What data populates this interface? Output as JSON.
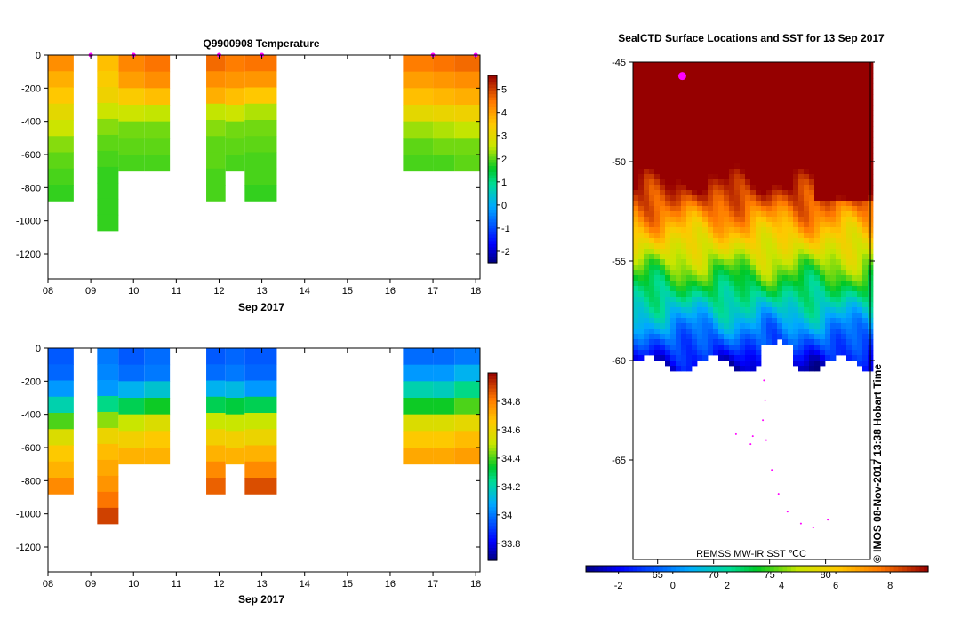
{
  "chart_data": [
    {
      "type": "heatmap",
      "name": "temperature-section",
      "title": "Q9900908  Temperature",
      "xlabel": "Sep 2017",
      "ylabel": "",
      "x_ticks": [
        "08",
        "09",
        "10",
        "11",
        "12",
        "13",
        "14",
        "15",
        "16",
        "17",
        "18"
      ],
      "xlim": [
        8,
        18.1
      ],
      "y_ticks": [
        0,
        -200,
        -400,
        -600,
        -800,
        -1000,
        -1200
      ],
      "ylim": [
        -1350,
        0
      ],
      "colorbar": {
        "ticks": [
          5,
          4,
          3,
          2,
          1,
          0,
          -1,
          -2
        ],
        "range": [
          -2.5,
          5.6
        ]
      },
      "profile_markers": [
        9.0,
        10.0,
        12.0,
        13.0,
        17.0,
        18.0
      ],
      "columns": [
        {
          "x0": 8.0,
          "x1": 8.6,
          "max_depth": -880,
          "values": [
            4.2,
            3.8,
            3.5,
            3.0,
            2.6,
            2.2,
            2.0,
            1.9,
            1.8
          ]
        },
        {
          "x0": 9.15,
          "x1": 9.65,
          "max_depth": -1060,
          "values": [
            3.6,
            3.4,
            3.2,
            2.6,
            2.2,
            2.0,
            1.9,
            1.8,
            1.8,
            1.8,
            1.8
          ]
        },
        {
          "x0": 9.65,
          "x1": 10.25,
          "max_depth": -700,
          "values": [
            4.3,
            4.0,
            3.4,
            2.6,
            2.1,
            2.0,
            1.9
          ]
        },
        {
          "x0": 10.25,
          "x1": 10.85,
          "max_depth": -700,
          "values": [
            4.5,
            4.2,
            3.6,
            2.5,
            2.1,
            2.0,
            1.9
          ]
        },
        {
          "x0": 11.7,
          "x1": 12.15,
          "max_depth": -880,
          "values": [
            4.6,
            4.2,
            3.8,
            2.5,
            2.2,
            2.0,
            2.0,
            1.9,
            1.9
          ]
        },
        {
          "x0": 12.15,
          "x1": 12.6,
          "max_depth": -700,
          "values": [
            4.4,
            4.1,
            3.6,
            2.6,
            2.1,
            2.0,
            1.9
          ]
        },
        {
          "x0": 12.6,
          "x1": 13.35,
          "max_depth": -880,
          "values": [
            4.5,
            4.1,
            3.5,
            2.4,
            2.1,
            2.0,
            1.9,
            1.9,
            1.8
          ]
        },
        {
          "x0": 16.3,
          "x1": 17.0,
          "max_depth": -700,
          "values": [
            4.4,
            4.0,
            3.6,
            3.0,
            2.3,
            2.0,
            1.9
          ]
        },
        {
          "x0": 17.0,
          "x1": 17.5,
          "max_depth": -700,
          "values": [
            4.5,
            4.1,
            3.7,
            3.1,
            2.4,
            2.1,
            1.9
          ]
        },
        {
          "x0": 17.5,
          "x1": 18.1,
          "max_depth": -700,
          "values": [
            4.6,
            4.2,
            3.8,
            3.2,
            2.5,
            2.1,
            2.0
          ]
        }
      ]
    },
    {
      "type": "heatmap",
      "name": "salinity-section",
      "title": "",
      "xlabel": "Sep 2017",
      "x_ticks": [
        "08",
        "09",
        "10",
        "11",
        "12",
        "13",
        "14",
        "15",
        "16",
        "17",
        "18"
      ],
      "xlim": [
        8,
        18.1
      ],
      "y_ticks": [
        0,
        -200,
        -400,
        -600,
        -800,
        -1000,
        -1200
      ],
      "ylim": [
        -1350,
        0
      ],
      "colorbar": {
        "ticks": [
          34.8,
          34.6,
          34.4,
          34.2,
          34,
          33.8
        ],
        "range": [
          33.68,
          35.0
        ]
      },
      "columns": [
        {
          "x0": 8.0,
          "x1": 8.6,
          "max_depth": -880,
          "values": [
            33.95,
            33.97,
            34.05,
            34.2,
            34.4,
            34.55,
            34.65,
            34.7,
            34.78
          ]
        },
        {
          "x0": 9.15,
          "x1": 9.65,
          "max_depth": -1060,
          "values": [
            34.0,
            34.02,
            34.05,
            34.25,
            34.45,
            34.6,
            34.68,
            34.72,
            34.76,
            34.82,
            34.9
          ]
        },
        {
          "x0": 9.65,
          "x1": 10.25,
          "max_depth": -700,
          "values": [
            33.95,
            33.98,
            34.1,
            34.3,
            34.5,
            34.62,
            34.7
          ]
        },
        {
          "x0": 10.25,
          "x1": 10.85,
          "max_depth": -700,
          "values": [
            33.98,
            34.0,
            34.15,
            34.35,
            34.55,
            34.65,
            34.7
          ]
        },
        {
          "x0": 11.7,
          "x1": 12.15,
          "max_depth": -880,
          "values": [
            33.95,
            33.98,
            34.1,
            34.3,
            34.5,
            34.62,
            34.7,
            34.78,
            34.85
          ]
        },
        {
          "x0": 12.15,
          "x1": 12.6,
          "max_depth": -700,
          "values": [
            33.97,
            34.0,
            34.12,
            34.32,
            34.5,
            34.62,
            34.7
          ]
        },
        {
          "x0": 12.6,
          "x1": 13.35,
          "max_depth": -880,
          "values": [
            33.95,
            33.97,
            34.05,
            34.3,
            34.5,
            34.6,
            34.7,
            34.78,
            34.88
          ]
        },
        {
          "x0": 16.3,
          "x1": 17.0,
          "max_depth": -700,
          "values": [
            33.98,
            34.05,
            34.2,
            34.35,
            34.55,
            34.65,
            34.72
          ]
        },
        {
          "x0": 17.0,
          "x1": 17.5,
          "max_depth": -700,
          "values": [
            33.98,
            34.05,
            34.18,
            34.35,
            34.55,
            34.65,
            34.72
          ]
        },
        {
          "x0": 17.5,
          "x1": 18.1,
          "max_depth": -700,
          "values": [
            34.0,
            34.1,
            34.25,
            34.4,
            34.58,
            34.68,
            34.74
          ]
        }
      ]
    },
    {
      "type": "map",
      "name": "sst-map",
      "title": "SealCTD Surface Locations and SST for 13 Sep 2017",
      "y_ticks": [
        -45,
        -50,
        -55,
        -60,
        -65
      ],
      "ylim": [
        -70,
        -45
      ],
      "x_ticks_top": [
        "65",
        "70",
        "75",
        "80"
      ],
      "x_tick_values": [
        65,
        70,
        75,
        80
      ],
      "xlim": [
        62.8,
        84
      ],
      "ice_edge_lat": -60.2,
      "caption": "REMSS MW-IR SST ℃C",
      "colorbar": {
        "ticks": [
          -2,
          0,
          2,
          4,
          6,
          8
        ],
        "range": [
          -3.2,
          9.4
        ]
      },
      "track_points": [
        [
          74.5,
          -61
        ],
        [
          74.6,
          -62
        ],
        [
          74.4,
          -63
        ],
        [
          74.7,
          -64
        ],
        [
          75.2,
          -65.5
        ],
        [
          75.8,
          -66.7
        ],
        [
          76.6,
          -67.6
        ],
        [
          77.8,
          -68.2
        ],
        [
          78.9,
          -68.4
        ],
        [
          80.2,
          -68.0
        ],
        [
          72.0,
          -63.7
        ],
        [
          73.5,
          -63.8
        ],
        [
          73.3,
          -64.2
        ]
      ],
      "recent_surface_location": [
        67.2,
        -45.7
      ]
    }
  ],
  "credit": "© IMOS 08-Nov-2017 13:38 Hobart Time",
  "colors": {
    "marker": "#ff00ff",
    "axis": "#000000",
    "missing": "#ffffff"
  }
}
